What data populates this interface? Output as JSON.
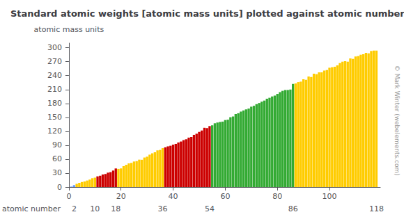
{
  "chart_data": {
    "type": "bar",
    "title": "Standard atomic weights [atomic mass units] plotted against atomic number",
    "xlabel": "atomic number",
    "ylabel": "atomic mass units",
    "annotations": [
      "© Mark Winter (webelements.com)"
    ],
    "x": [
      1,
      2,
      3,
      4,
      5,
      6,
      7,
      8,
      9,
      10,
      11,
      12,
      13,
      14,
      15,
      16,
      17,
      18,
      19,
      20,
      21,
      22,
      23,
      24,
      25,
      26,
      27,
      28,
      29,
      30,
      31,
      32,
      33,
      34,
      35,
      36,
      37,
      38,
      39,
      40,
      41,
      42,
      43,
      44,
      45,
      46,
      47,
      48,
      49,
      50,
      51,
      52,
      53,
      54,
      55,
      56,
      57,
      58,
      59,
      60,
      61,
      62,
      63,
      64,
      65,
      66,
      67,
      68,
      69,
      70,
      71,
      72,
      73,
      74,
      75,
      76,
      77,
      78,
      79,
      80,
      81,
      82,
      83,
      84,
      85,
      86,
      87,
      88,
      89,
      90,
      91,
      92,
      93,
      94,
      95,
      96,
      97,
      98,
      99,
      100,
      101,
      102,
      103,
      104,
      105,
      106,
      107,
      108,
      109,
      110,
      111,
      112,
      113,
      114,
      115,
      116,
      117,
      118
    ],
    "values": [
      1.008,
      4.003,
      6.941,
      9.012,
      10.811,
      12.011,
      14.007,
      15.999,
      18.998,
      20.18,
      22.99,
      24.305,
      26.982,
      28.086,
      30.974,
      32.065,
      35.453,
      39.948,
      39.098,
      40.078,
      44.956,
      47.867,
      50.942,
      51.996,
      54.938,
      55.845,
      58.933,
      58.693,
      63.546,
      65.38,
      69.723,
      72.63,
      74.922,
      78.96,
      79.904,
      83.798,
      85.468,
      87.62,
      88.906,
      91.224,
      92.906,
      95.96,
      98.0,
      101.07,
      102.906,
      106.42,
      107.868,
      112.411,
      114.818,
      118.71,
      121.76,
      127.6,
      126.904,
      131.293,
      132.905,
      137.327,
      138.905,
      140.116,
      140.908,
      144.242,
      145.0,
      150.36,
      151.964,
      157.25,
      158.925,
      162.5,
      164.93,
      167.259,
      168.934,
      173.054,
      174.967,
      178.49,
      180.948,
      183.84,
      186.207,
      190.23,
      192.217,
      195.084,
      196.967,
      200.59,
      204.383,
      207.2,
      208.98,
      209.0,
      210.0,
      222.0,
      223.0,
      226.0,
      227.0,
      232.038,
      231.036,
      238.029,
      237.0,
      244.0,
      243.0,
      247.0,
      247.0,
      251.0,
      252.0,
      257.0,
      258.0,
      259.0,
      262.0,
      267.0,
      270.0,
      271.0,
      270.0,
      277.0,
      276.0,
      281.0,
      282.0,
      285.0,
      286.0,
      289.0,
      288.0,
      293.0,
      294.0,
      294.0
    ],
    "colors": [
      "#6699FF",
      "#6699FF",
      "#FFCC00",
      "#FFCC00",
      "#FFCC00",
      "#FFCC00",
      "#FFCC00",
      "#FFCC00",
      "#FFCC00",
      "#FFCC00",
      "#CC0000",
      "#CC0000",
      "#CC0000",
      "#CC0000",
      "#CC0000",
      "#CC0000",
      "#CC0000",
      "#CC0000",
      "#FFCC00",
      "#FFCC00",
      "#FFCC00",
      "#FFCC00",
      "#FFCC00",
      "#FFCC00",
      "#FFCC00",
      "#FFCC00",
      "#FFCC00",
      "#FFCC00",
      "#FFCC00",
      "#FFCC00",
      "#FFCC00",
      "#FFCC00",
      "#FFCC00",
      "#FFCC00",
      "#FFCC00",
      "#FFCC00",
      "#CC0000",
      "#CC0000",
      "#CC0000",
      "#CC0000",
      "#CC0000",
      "#CC0000",
      "#CC0000",
      "#CC0000",
      "#CC0000",
      "#CC0000",
      "#CC0000",
      "#CC0000",
      "#CC0000",
      "#CC0000",
      "#CC0000",
      "#CC0000",
      "#CC0000",
      "#CC0000",
      "#33AA33",
      "#33AA33",
      "#33AA33",
      "#33AA33",
      "#33AA33",
      "#33AA33",
      "#33AA33",
      "#33AA33",
      "#33AA33",
      "#33AA33",
      "#33AA33",
      "#33AA33",
      "#33AA33",
      "#33AA33",
      "#33AA33",
      "#33AA33",
      "#33AA33",
      "#33AA33",
      "#33AA33",
      "#33AA33",
      "#33AA33",
      "#33AA33",
      "#33AA33",
      "#33AA33",
      "#33AA33",
      "#33AA33",
      "#33AA33",
      "#33AA33",
      "#33AA33",
      "#33AA33",
      "#33AA33",
      "#33AA33",
      "#FFCC00",
      "#FFCC00",
      "#FFCC00",
      "#FFCC00",
      "#FFCC00",
      "#FFCC00",
      "#FFCC00",
      "#FFCC00",
      "#FFCC00",
      "#FFCC00",
      "#FFCC00",
      "#FFCC00",
      "#FFCC00",
      "#FFCC00",
      "#FFCC00",
      "#FFCC00",
      "#FFCC00",
      "#FFCC00",
      "#FFCC00",
      "#FFCC00",
      "#FFCC00",
      "#FFCC00",
      "#FFCC00",
      "#FFCC00",
      "#FFCC00",
      "#FFCC00",
      "#FFCC00",
      "#FFCC00",
      "#FFCC00",
      "#FFCC00",
      "#FFCC00",
      "#FFCC00"
    ],
    "xlim": [
      -0.5,
      119.5
    ],
    "xticks": [
      0,
      20,
      40,
      60,
      80,
      100
    ],
    "x2lim": [
      -0.5,
      119.5
    ],
    "x2ticks": [
      2,
      10,
      18,
      36,
      54,
      86,
      118
    ],
    "ylim": [
      0,
      310
    ],
    "yticks": [
      0,
      30,
      60,
      90,
      120,
      150,
      180,
      210,
      240,
      270,
      300
    ],
    "grid": false
  }
}
